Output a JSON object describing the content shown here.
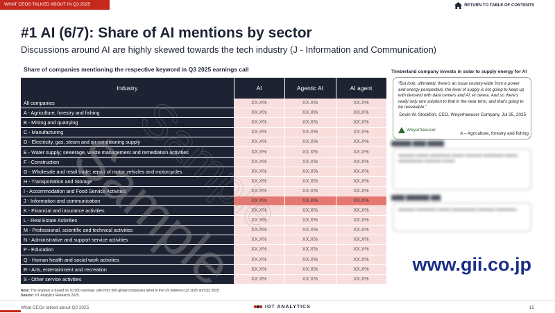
{
  "header": {
    "section": "WHAT CEOS TALKED ABOUT IN Q3 2025",
    "return_link": "RETURN TO TABLE OF CONTENTS"
  },
  "title": "#1 AI (6/7): Share of AI mentions by sector",
  "subtitle": "Discussions around AI are highly skewed towards the tech industry (J - Information and Communication)",
  "table": {
    "caption": "Share of companies mentioning the respective keyword in Q3 2025 earnings call",
    "headers": [
      "Industry",
      "AI",
      "Agentic AI",
      "AI agent"
    ],
    "rows": [
      {
        "industry": "All companies",
        "ai": "XX.X%",
        "agentic": "XX.X%",
        "agent": "XX.X%"
      },
      {
        "industry": "A - Agriculture, forestry and fishing",
        "ai": "XX.X%",
        "agentic": "XX.X%",
        "agent": "XX.X%"
      },
      {
        "industry": "B - Mining and quarrying",
        "ai": "XX.X%",
        "agentic": "XX.X%",
        "agent": "XX.X%"
      },
      {
        "industry": "C - Manufacturing",
        "ai": "XX.X%",
        "agentic": "XX.X%",
        "agent": "XX.X%"
      },
      {
        "industry": "D - Electricity, gas, steam and air conditioning supply",
        "ai": "XX.X%",
        "agentic": "XX.X%",
        "agent": "XX.X%"
      },
      {
        "industry": "E - Water supply; sewerage, waste management and remediation activities",
        "ai": "XX.X%",
        "agentic": "XX.X%",
        "agent": "XX.X%"
      },
      {
        "industry": "F - Construction",
        "ai": "XX.X%",
        "agentic": "XX.X%",
        "agent": "XX.X%"
      },
      {
        "industry": "G - Wholesale and retail trade; repair of motor vehicles and motorcycles",
        "ai": "XX.X%",
        "agentic": "XX.X%",
        "agent": "XX.X%"
      },
      {
        "industry": "H - Transportation and Storage",
        "ai": "XX.X%",
        "agentic": "XX.X%",
        "agent": "XX.X%"
      },
      {
        "industry": "I - Accommodation and Food Service Activities",
        "ai": "XX.X%",
        "agentic": "XX.X%",
        "agent": "XX.X%"
      },
      {
        "industry": "J - Information and communication",
        "ai": "XX.X%",
        "agentic": "XX.X%",
        "agent": "XX.X%"
      },
      {
        "industry": "K - Financial and insurance activities",
        "ai": "XX.X%",
        "agentic": "XX.X%",
        "agent": "XX.X%"
      },
      {
        "industry": "L - Real Estate Activities",
        "ai": "XX.X%",
        "agentic": "XX.X%",
        "agent": "XX.X%"
      },
      {
        "industry": "M - Professional, scientific and technical activities",
        "ai": "XX.X%",
        "agentic": "XX.X%",
        "agent": "XX.X%"
      },
      {
        "industry": "N - Administrative and support service activities",
        "ai": "XX.X%",
        "agentic": "XX.X%",
        "agent": "XX.X%"
      },
      {
        "industry": "P - Education",
        "ai": "XX.X%",
        "agentic": "XX.X%",
        "agent": "XX.X%"
      },
      {
        "industry": "Q - Human health and social work activities",
        "ai": "XX.X%",
        "agentic": "XX.X%",
        "agent": "XX.X%"
      },
      {
        "industry": "R - Arts, entertainment and recreation",
        "ai": "XX.X%",
        "agentic": "XX.X%",
        "agent": "XX.X%"
      },
      {
        "industry": "S - Other service activities",
        "ai": "XX.X%",
        "agentic": "XX.X%",
        "agent": "XX.X%"
      }
    ]
  },
  "note": {
    "note_label": "Note:",
    "note_text": "The analysis is based on 10,000 earnings calls from 500 global companies listed in the US between Q2 2025 and Q3 2025.",
    "source_label": "Source:",
    "source_text": "IoT Analytics Research 2025"
  },
  "case": {
    "heading": "Timberland company invests in solar to supply energy for AI",
    "quote": "“But look, ultimately, there's an issue country-wide from a power and energy perspective, the level of supply is not going to keep up with demand with data centers and AI, et cetera. And so there's really only one solution to that in the near term, and that's going to be renewable.”",
    "attribution": "Devin W. Stockfish, CEO, Weyerhaeuser Company, Jul 25, 2025",
    "logo_text": "Weyerhaeuser",
    "sector": "A – Agriculture, forestry and fishing"
  },
  "watermark": "Sample",
  "gii_url": "www.gii.co.jp",
  "footer": {
    "left": "What CEOs talked about Q3 2025",
    "brand": "IOT ANALYTICS",
    "page": "15"
  },
  "colors": {
    "accent_red": "#c5281c",
    "navy": "#1e2333",
    "cell_pink": "#f8dedd",
    "cell_highlight": "#e57871"
  }
}
